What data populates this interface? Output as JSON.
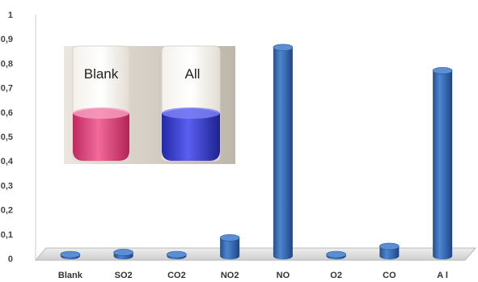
{
  "chart_data": {
    "type": "bar",
    "categories": [
      "Blank",
      "SO2",
      "CO2",
      "NO2",
      "NO",
      "O2",
      "CO",
      "A l"
    ],
    "values": [
      0.005,
      0.025,
      0.015,
      0.085,
      0.865,
      0.005,
      0.05,
      0.77
    ],
    "ylim": [
      0,
      1
    ],
    "y_ticks": [
      "0",
      "0,1",
      "0,2",
      "0,3",
      "0,4",
      "0,5",
      "0,6",
      "0,7",
      "0,8",
      "0,9",
      "1"
    ],
    "grid": false,
    "title": "",
    "xlabel": "",
    "ylabel": "",
    "bar_style": "3d-cylinder",
    "colors": {
      "bar": "#3a6fb7",
      "bar_top": "#5b8fd4",
      "bar_dark": "#24508e",
      "floor": "#d9d9d9"
    }
  },
  "inset_photo": {
    "labels": [
      "Blank",
      "All"
    ],
    "colors": {
      "blank_solution": "#e2467e",
      "all_solution": "#3a3fd0",
      "background": "#c9c3ba"
    }
  }
}
